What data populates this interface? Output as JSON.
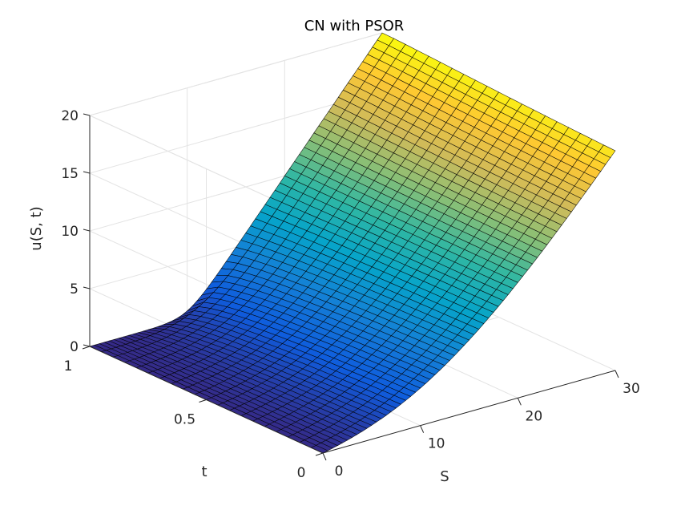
{
  "chart_data": {
    "type": "surface",
    "title": "CN with PSOR",
    "xlabel": "S",
    "ylabel": "t",
    "zlabel": "u(S, t)",
    "xlim": [
      0,
      30
    ],
    "ylim": [
      0,
      1
    ],
    "zlim": [
      0,
      20
    ],
    "xticks": [
      0,
      10,
      20,
      30
    ],
    "yticks": [
      0,
      0.5,
      1
    ],
    "zticks": [
      0,
      5,
      10,
      15,
      20
    ],
    "xtick_labels": [
      "0",
      "10",
      "20",
      "30"
    ],
    "ytick_labels": [
      "0",
      "0.5",
      "1"
    ],
    "ztick_labels": [
      "0",
      "5",
      "10",
      "15",
      "20"
    ],
    "grid": true,
    "colormap": "parula",
    "colormap_stops": [
      "#352a87",
      "#0f5cdd",
      "#1481d6",
      "#06a4ca",
      "#2eb7a4",
      "#87bf77",
      "#d1bb59",
      "#fec832",
      "#f9fb0e"
    ],
    "edge_color": "#000000",
    "strike": 10,
    "maturity": 1,
    "S_grid": [
      0,
      0.5,
      1,
      1.5,
      2,
      2.5,
      3,
      3.5,
      4,
      4.5,
      5,
      5.5,
      6,
      6.5,
      7,
      7.5,
      8,
      8.5,
      9,
      9.5,
      10,
      10.5,
      11,
      11.5,
      12,
      12.5,
      13,
      13.5,
      14,
      14.5,
      15,
      15.5,
      16,
      16.5,
      17,
      17.5,
      18,
      18.5,
      19,
      19.5,
      20,
      20.5,
      21,
      21.5,
      22,
      22.5,
      23,
      23.5,
      24,
      24.5,
      25,
      25.5,
      26,
      26.5,
      27,
      27.5,
      28,
      28.5,
      29,
      29.5,
      30
    ],
    "t_grid": [
      0,
      0.05,
      0.1,
      0.15,
      0.2,
      0.25,
      0.3,
      0.35,
      0.4,
      0.45,
      0.5,
      0.55,
      0.6,
      0.65,
      0.7,
      0.75,
      0.8,
      0.85,
      0.9,
      0.95,
      1
    ]
  }
}
